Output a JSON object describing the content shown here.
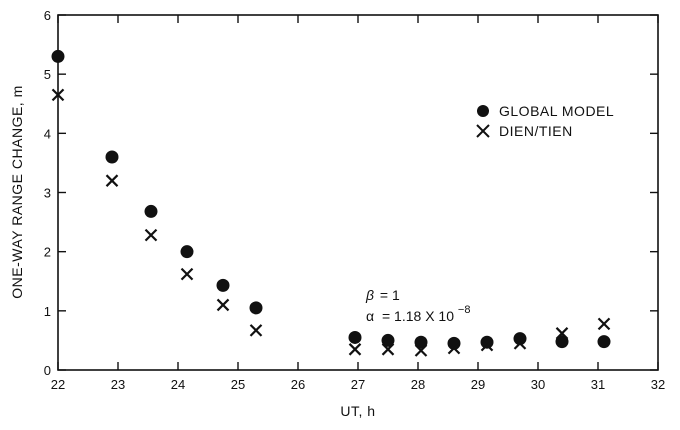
{
  "chart_data": {
    "type": "scatter",
    "xlabel": "UT, h",
    "ylabel": "ONE-WAY RANGE CHANGE, m",
    "xlim": [
      22,
      32
    ],
    "ylim": [
      0,
      6
    ],
    "x_ticks": [
      22,
      23,
      24,
      25,
      26,
      27,
      28,
      29,
      30,
      31,
      32
    ],
    "y_ticks": [
      0,
      1,
      2,
      3,
      4,
      5,
      6
    ],
    "grid": false,
    "legend_position": "top-right",
    "series": [
      {
        "name": "GLOBAL MODEL",
        "marker": "filled-circle",
        "x": [
          22.0,
          22.9,
          23.55,
          24.15,
          24.75,
          25.3,
          26.95,
          27.5,
          28.05,
          28.6,
          29.15,
          29.7,
          30.4,
          31.1
        ],
        "y": [
          5.3,
          3.6,
          2.68,
          2.0,
          1.43,
          1.05,
          0.55,
          0.5,
          0.47,
          0.45,
          0.47,
          0.53,
          0.48,
          0.48
        ]
      },
      {
        "name": "DIEN/TIEN",
        "marker": "x",
        "x": [
          22.0,
          22.9,
          23.55,
          24.15,
          24.75,
          25.3,
          26.95,
          27.5,
          28.05,
          28.6,
          29.15,
          29.7,
          30.4,
          31.1
        ],
        "y": [
          4.65,
          3.2,
          2.28,
          1.62,
          1.1,
          0.67,
          0.35,
          0.35,
          0.33,
          0.37,
          0.42,
          0.45,
          0.62,
          0.78
        ]
      }
    ],
    "annotations": {
      "beta_symbol": "β",
      "beta_value": "= 1",
      "alpha_symbol": "α",
      "alpha_value": "= 1.18 X 10",
      "alpha_exponent": "−8"
    }
  }
}
